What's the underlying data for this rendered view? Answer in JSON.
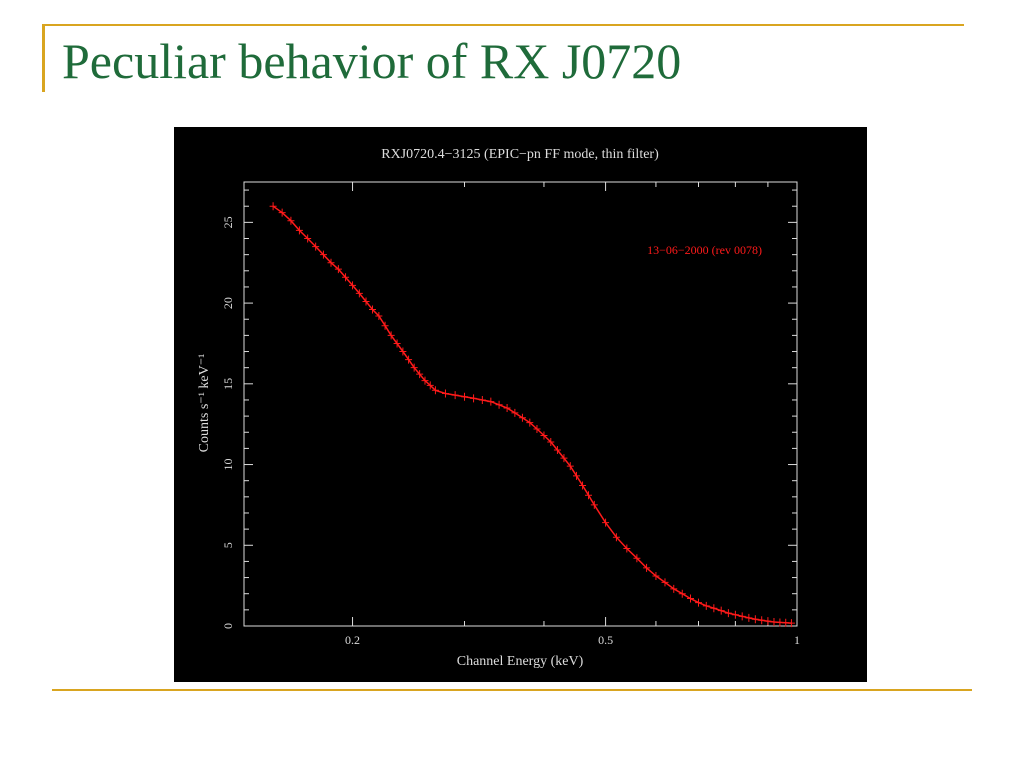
{
  "slide": {
    "title": "Peculiar behavior of RX J0720",
    "title_color": "#1f6b3a",
    "rule_color": "#d9a520"
  },
  "chart_data": {
    "type": "line",
    "title": "RXJ0720.4−3125 (EPIC−pn FF mode, thin filter)",
    "xlabel": "Channel Energy (keV)",
    "ylabel": "Counts s⁻¹ keV⁻¹",
    "xscale": "log",
    "xlim": [
      0.135,
      1.0
    ],
    "ylim": [
      0,
      27.5
    ],
    "xticks": [
      0.2,
      0.5,
      1
    ],
    "xtick_labels": [
      "0.2",
      "0.5",
      "1"
    ],
    "yticks": [
      0,
      5,
      10,
      15,
      20,
      25
    ],
    "ytick_labels": [
      "0",
      "5",
      "10",
      "15",
      "20",
      "25"
    ],
    "legend": "top-right",
    "background": "#000000",
    "axis_color": "#dddddd",
    "series": [
      {
        "name": "13−06−2000 (rev 0078)",
        "color": "#ff1a1a",
        "x": [
          0.15,
          0.155,
          0.16,
          0.165,
          0.17,
          0.175,
          0.18,
          0.185,
          0.19,
          0.195,
          0.2,
          0.205,
          0.21,
          0.215,
          0.22,
          0.225,
          0.23,
          0.235,
          0.24,
          0.245,
          0.25,
          0.255,
          0.26,
          0.265,
          0.27,
          0.28,
          0.29,
          0.3,
          0.31,
          0.32,
          0.33,
          0.34,
          0.35,
          0.36,
          0.37,
          0.38,
          0.39,
          0.4,
          0.41,
          0.42,
          0.43,
          0.44,
          0.45,
          0.46,
          0.47,
          0.48,
          0.5,
          0.52,
          0.54,
          0.56,
          0.58,
          0.6,
          0.62,
          0.64,
          0.66,
          0.68,
          0.7,
          0.72,
          0.74,
          0.76,
          0.78,
          0.8,
          0.82,
          0.84,
          0.86,
          0.88,
          0.9,
          0.92,
          0.94,
          0.96,
          0.98
        ],
        "y": [
          26.0,
          25.6,
          25.1,
          24.5,
          24.0,
          23.5,
          23.0,
          22.5,
          22.1,
          21.6,
          21.1,
          20.6,
          20.1,
          19.6,
          19.2,
          18.6,
          18.0,
          17.5,
          17.0,
          16.5,
          16.0,
          15.6,
          15.2,
          14.9,
          14.6,
          14.4,
          14.3,
          14.2,
          14.1,
          14.0,
          13.9,
          13.7,
          13.5,
          13.2,
          12.9,
          12.6,
          12.2,
          11.8,
          11.4,
          10.9,
          10.4,
          9.9,
          9.3,
          8.7,
          8.1,
          7.5,
          6.4,
          5.5,
          4.8,
          4.2,
          3.6,
          3.1,
          2.7,
          2.3,
          2.0,
          1.7,
          1.45,
          1.25,
          1.1,
          0.95,
          0.8,
          0.7,
          0.6,
          0.5,
          0.42,
          0.36,
          0.3,
          0.25,
          0.22,
          0.2,
          0.18
        ]
      }
    ]
  }
}
